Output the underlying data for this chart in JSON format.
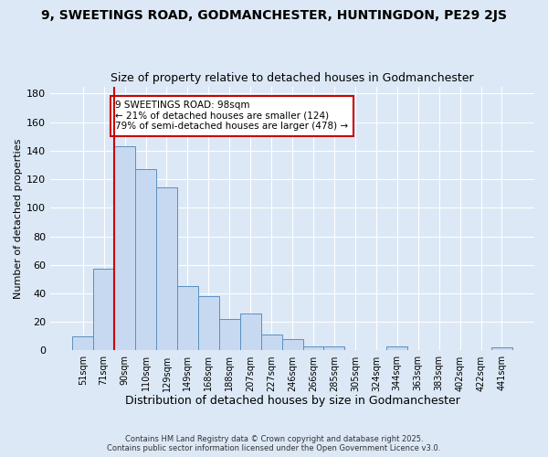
{
  "title": "9, SWEETINGS ROAD, GODMANCHESTER, HUNTINGDON, PE29 2JS",
  "subtitle": "Size of property relative to detached houses in Godmanchester",
  "xlabel": "Distribution of detached houses by size in Godmanchester",
  "ylabel": "Number of detached properties",
  "bar_labels": [
    "51sqm",
    "71sqm",
    "90sqm",
    "110sqm",
    "129sqm",
    "149sqm",
    "168sqm",
    "188sqm",
    "207sqm",
    "227sqm",
    "246sqm",
    "266sqm",
    "285sqm",
    "305sqm",
    "324sqm",
    "344sqm",
    "363sqm",
    "383sqm",
    "402sqm",
    "422sqm",
    "441sqm"
  ],
  "bar_values": [
    10,
    57,
    143,
    127,
    114,
    45,
    38,
    22,
    26,
    11,
    8,
    3,
    3,
    0,
    0,
    3,
    0,
    0,
    0,
    0,
    2
  ],
  "bar_color": "#c7d9f0",
  "bar_edge_color": "#5a8fc2",
  "vline_x": 1.5,
  "vline_color": "#cc0000",
  "ylim": [
    0,
    185
  ],
  "yticks": [
    0,
    20,
    40,
    60,
    80,
    100,
    120,
    140,
    160,
    180
  ],
  "annotation_title": "9 SWEETINGS ROAD: 98sqm",
  "annotation_line1": "← 21% of detached houses are smaller (124)",
  "annotation_line2": "79% of semi-detached houses are larger (478) →",
  "annotation_box_color": "#ffffff",
  "annotation_box_edge_color": "#cc0000",
  "footer_line1": "Contains HM Land Registry data © Crown copyright and database right 2025.",
  "footer_line2": "Contains public sector information licensed under the Open Government Licence v3.0.",
  "background_color": "#dce8f5",
  "plot_background_color": "#dce8f5",
  "title_fontsize": 10,
  "subtitle_fontsize": 9,
  "xlabel_fontsize": 9,
  "ylabel_fontsize": 8
}
